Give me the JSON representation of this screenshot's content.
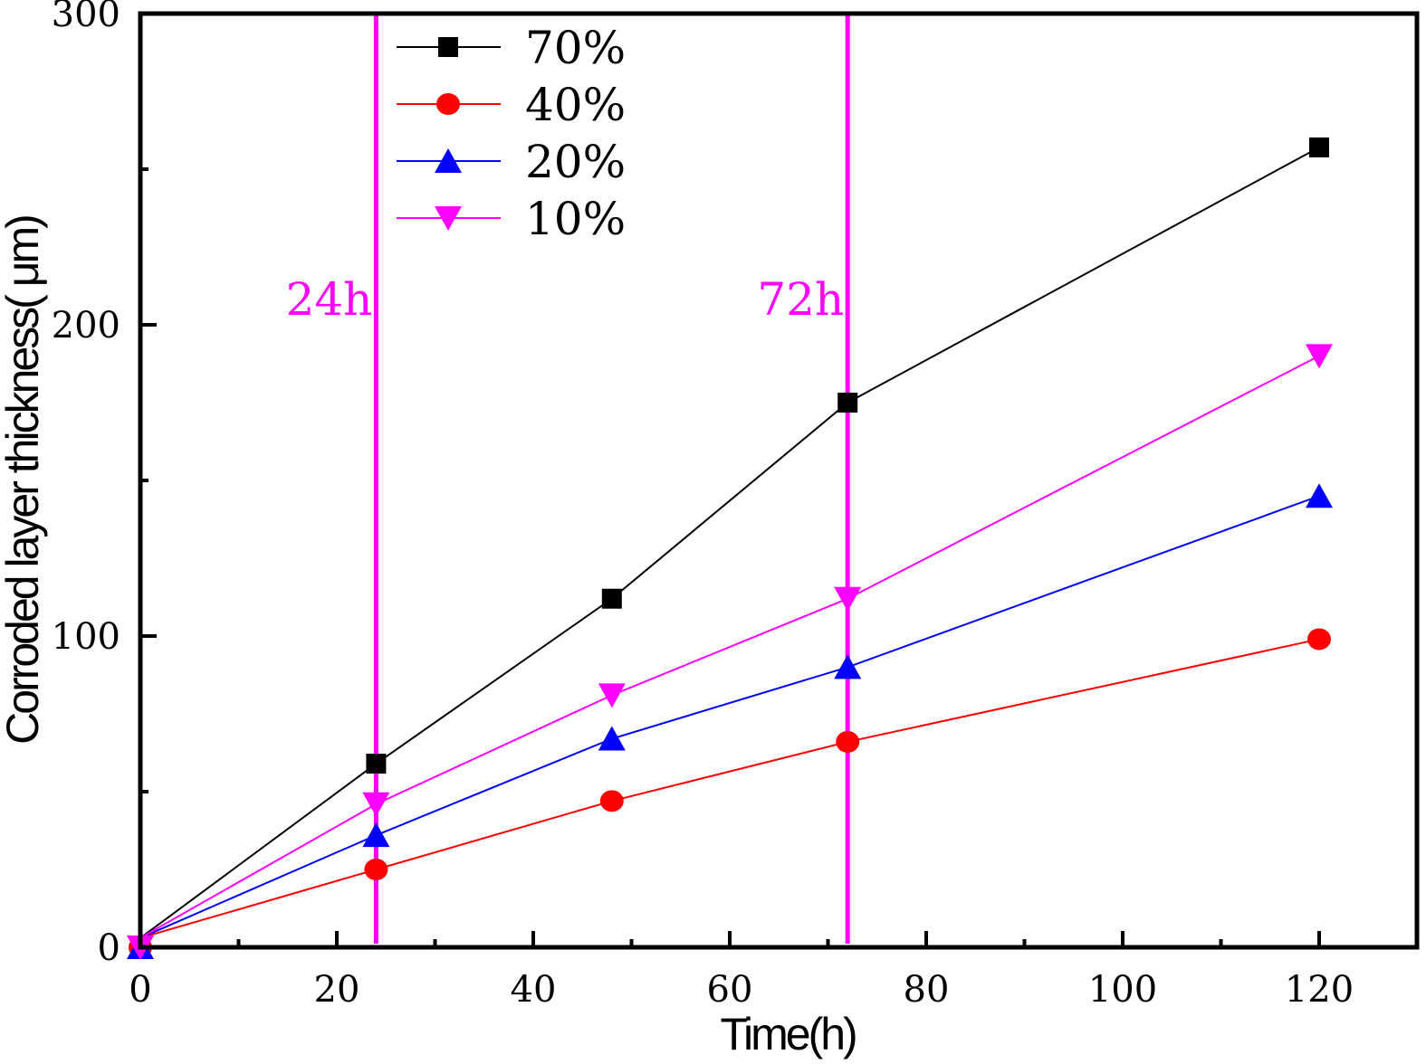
{
  "chart_data": {
    "type": "line",
    "title": "",
    "xlabel": "Time(h)",
    "ylabel": "Corroded layer thickness( μm)",
    "xlim": [
      0,
      130
    ],
    "ylim": [
      0,
      300
    ],
    "x_ticks": [
      0,
      20,
      40,
      60,
      80,
      100,
      120
    ],
    "x_minor_ticks": [
      10,
      30,
      50,
      70,
      90,
      110
    ],
    "y_ticks": [
      0,
      100,
      200,
      300
    ],
    "y_minor_ticks": [
      50,
      150,
      250
    ],
    "grid": false,
    "legend_position": "top-left",
    "series": [
      {
        "name": "70%",
        "color": "#000000",
        "marker": "square",
        "x": [
          0,
          24,
          48,
          72,
          120
        ],
        "values": [
          3,
          59,
          112,
          175,
          257
        ]
      },
      {
        "name": "40%",
        "color": "#ff0000",
        "marker": "circle",
        "x": [
          0,
          24,
          48,
          72,
          120
        ],
        "values": [
          3,
          25,
          47,
          66,
          99
        ]
      },
      {
        "name": "20%",
        "color": "#0000ff",
        "marker": "triangle-up",
        "x": [
          0,
          24,
          48,
          72,
          120
        ],
        "values": [
          3,
          36,
          67,
          90,
          145
        ]
      },
      {
        "name": "10%",
        "color": "#ff00ff",
        "marker": "triangle-down",
        "x": [
          0,
          24,
          48,
          72,
          120
        ],
        "values": [
          3,
          46,
          81,
          112,
          190
        ]
      }
    ],
    "annotations": [
      {
        "type": "vline",
        "x": 24,
        "label": "24h",
        "color": "#ff00ff"
      },
      {
        "type": "vline",
        "x": 72,
        "label": "72h",
        "color": "#ff00ff"
      }
    ]
  }
}
